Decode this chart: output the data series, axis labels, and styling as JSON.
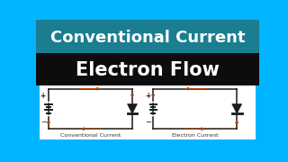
{
  "title1": "Conventional Current",
  "title2": "Electron Flow",
  "label1": "Conventional Current",
  "label2": "Electron Current",
  "bg_top": "#1a7e90",
  "bg_mid": "#0d0d0d",
  "bg_outer": "#00b4ff",
  "circuit_bg": "#f0f0f0",
  "circuit_line_color": "#1a1a1a",
  "arrow_color": "#b84000",
  "title1_color": "#ffffff",
  "title2_color": "#ffffff",
  "label_color": "#333333",
  "title1_fontsize": 13,
  "title2_fontsize": 15
}
